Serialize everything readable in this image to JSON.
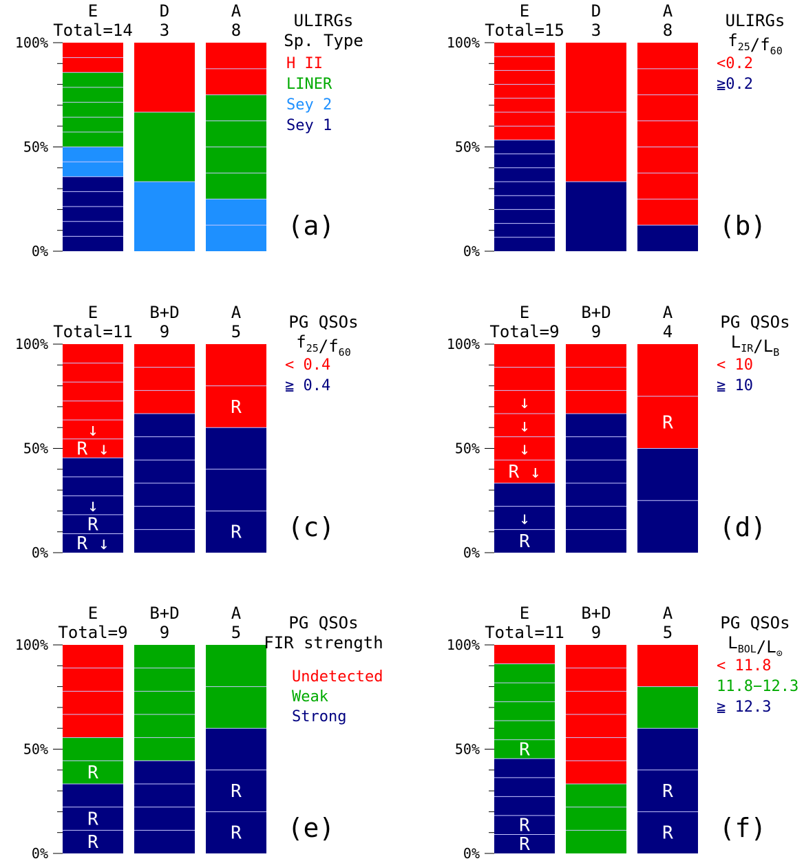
{
  "colors": {
    "red": "#ff0000",
    "green": "#00aa00",
    "lightblue": "#1e90ff",
    "navy": "#000080",
    "divider": "#c8c8ff"
  },
  "chart_data": [
    {
      "type": "bar",
      "stacked": true,
      "panel": "(a)",
      "title_lines": [
        "ULIRGs",
        "Sp. Type"
      ],
      "ylim": [
        0,
        100
      ],
      "yticks": [
        "0%",
        "50%",
        "100%"
      ],
      "categories": [
        "E",
        "D",
        "A"
      ],
      "totals": [
        "Total=14",
        "3",
        "8"
      ],
      "counts": [
        14,
        3,
        8
      ],
      "series": [
        {
          "name": "Sey 1",
          "color": "#000080",
          "values": [
            5,
            0,
            0
          ]
        },
        {
          "name": "Sey 2",
          "color": "#1e90ff",
          "values": [
            2,
            1,
            2
          ]
        },
        {
          "name": "LINER",
          "color": "#00aa00",
          "values": [
            5,
            1,
            4
          ]
        },
        {
          "name": "H II",
          "color": "#ff0000",
          "values": [
            2,
            1,
            2
          ]
        }
      ],
      "legend": [
        {
          "text": "H II",
          "color": "#ff0000"
        },
        {
          "text": "LINER",
          "color": "#00aa00"
        },
        {
          "text": "Sey 2",
          "color": "#1e90ff"
        },
        {
          "text": "Sey 1",
          "color": "#000080"
        }
      ],
      "markers": []
    },
    {
      "type": "bar",
      "stacked": true,
      "panel": "(b)",
      "title_lines": [
        "ULIRGs",
        "f25/f60"
      ],
      "ylim": [
        0,
        100
      ],
      "yticks": [
        "0%",
        "50%",
        "100%"
      ],
      "categories": [
        "E",
        "D",
        "A"
      ],
      "totals": [
        "Total=15",
        "3",
        "8"
      ],
      "counts": [
        15,
        3,
        8
      ],
      "series": [
        {
          "name": "≧0.2",
          "color": "#000080",
          "values": [
            8,
            1,
            1
          ]
        },
        {
          "name": "<0.2",
          "color": "#ff0000",
          "values": [
            7,
            2,
            7
          ]
        }
      ],
      "legend": [
        {
          "text": "<0.2",
          "color": "#ff0000"
        },
        {
          "text": "≧0.2",
          "color": "#000080"
        }
      ],
      "markers": []
    },
    {
      "type": "bar",
      "stacked": true,
      "panel": "(c)",
      "title_lines": [
        "PG QSOs",
        "f25/f60"
      ],
      "ylim": [
        0,
        100
      ],
      "yticks": [
        "0%",
        "50%",
        "100%"
      ],
      "categories": [
        "E",
        "B+D",
        "A"
      ],
      "totals": [
        "Total=11",
        "9",
        "5"
      ],
      "counts": [
        11,
        9,
        5
      ],
      "series": [
        {
          "name": "≧ 0.4",
          "color": "#000080",
          "values": [
            5,
            6,
            3
          ]
        },
        {
          "name": "< 0.4",
          "color": "#ff0000",
          "values": [
            6,
            3,
            2
          ]
        }
      ],
      "legend": [
        {
          "text": "< 0.4",
          "color": "#ff0000"
        },
        {
          "text": "≧ 0.4",
          "color": "#000080"
        }
      ],
      "markers": [
        {
          "bar": 0,
          "seg": 0,
          "text": "R ↓"
        },
        {
          "bar": 0,
          "seg": 1,
          "text": "R"
        },
        {
          "bar": 0,
          "seg": 2,
          "text": "↓"
        },
        {
          "bar": 0,
          "seg": 5,
          "text": "R ↓"
        },
        {
          "bar": 0,
          "seg": 6,
          "text": "↓"
        },
        {
          "bar": 2,
          "seg": 0,
          "text": "R"
        },
        {
          "bar": 2,
          "seg": 3,
          "text": "R"
        }
      ]
    },
    {
      "type": "bar",
      "stacked": true,
      "panel": "(d)",
      "title_lines": [
        "PG QSOs",
        "LIR/LB"
      ],
      "ylim": [
        0,
        100
      ],
      "yticks": [
        "0%",
        "50%",
        "100%"
      ],
      "categories": [
        "E",
        "B+D",
        "A"
      ],
      "totals": [
        "Total=9",
        "9",
        "4"
      ],
      "counts": [
        9,
        9,
        4
      ],
      "series": [
        {
          "name": "≧ 10",
          "color": "#000080",
          "values": [
            3,
            6,
            2
          ]
        },
        {
          "name": "< 10",
          "color": "#ff0000",
          "values": [
            6,
            3,
            2
          ]
        }
      ],
      "legend": [
        {
          "text": "< 10",
          "color": "#ff0000"
        },
        {
          "text": "≧ 10",
          "color": "#000080"
        }
      ],
      "markers": [
        {
          "bar": 0,
          "seg": 0,
          "text": "R"
        },
        {
          "bar": 0,
          "seg": 1,
          "text": "↓"
        },
        {
          "bar": 0,
          "seg": 3,
          "text": "R ↓"
        },
        {
          "bar": 0,
          "seg": 4,
          "text": "↓"
        },
        {
          "bar": 0,
          "seg": 5,
          "text": "↓"
        },
        {
          "bar": 0,
          "seg": 6,
          "text": "↓"
        },
        {
          "bar": 2,
          "seg": 2,
          "text": "R"
        }
      ]
    },
    {
      "type": "bar",
      "stacked": true,
      "panel": "(e)",
      "title_lines": [
        "PG QSOs",
        "FIR strength"
      ],
      "ylim": [
        0,
        100
      ],
      "yticks": [
        "0%",
        "50%",
        "100%"
      ],
      "categories": [
        "E",
        "B+D",
        "A"
      ],
      "totals": [
        "Total=9",
        "9",
        "5"
      ],
      "counts": [
        9,
        9,
        5
      ],
      "series": [
        {
          "name": "Strong",
          "color": "#000080",
          "values": [
            3,
            4,
            3
          ]
        },
        {
          "name": "Weak",
          "color": "#00aa00",
          "values": [
            2,
            5,
            2
          ]
        },
        {
          "name": "Undetected",
          "color": "#ff0000",
          "values": [
            4,
            0,
            0
          ]
        }
      ],
      "legend": [
        {
          "text": "Undetected",
          "color": "#ff0000"
        },
        {
          "text": "Weak",
          "color": "#00aa00"
        },
        {
          "text": "Strong",
          "color": "#000080"
        }
      ],
      "markers": [
        {
          "bar": 0,
          "seg": 0,
          "text": "R"
        },
        {
          "bar": 0,
          "seg": 1,
          "text": "R"
        },
        {
          "bar": 0,
          "seg": 3,
          "text": "R"
        },
        {
          "bar": 2,
          "seg": 0,
          "text": "R"
        },
        {
          "bar": 2,
          "seg": 1,
          "text": "R"
        }
      ]
    },
    {
      "type": "bar",
      "stacked": true,
      "panel": "(f)",
      "title_lines": [
        "PG QSOs",
        "LBOL/L☉"
      ],
      "ylim": [
        0,
        100
      ],
      "yticks": [
        "0%",
        "50%",
        "100%"
      ],
      "categories": [
        "E",
        "B+D",
        "A"
      ],
      "totals": [
        "Total=11",
        "9",
        "5"
      ],
      "counts": [
        11,
        9,
        5
      ],
      "series": [
        {
          "name": "≧ 12.3",
          "color": "#000080",
          "values": [
            5,
            0,
            3
          ]
        },
        {
          "name": "11.8−12.3",
          "color": "#00aa00",
          "values": [
            5,
            3,
            1
          ]
        },
        {
          "name": "< 11.8",
          "color": "#ff0000",
          "values": [
            1,
            6,
            1
          ]
        }
      ],
      "legend": [
        {
          "text": "< 11.8",
          "color": "#ff0000"
        },
        {
          "text": "11.8−12.3",
          "color": "#00aa00"
        },
        {
          "text": "≧ 12.3",
          "color": "#000080"
        }
      ],
      "markers": [
        {
          "bar": 0,
          "seg": 0,
          "text": "R"
        },
        {
          "bar": 0,
          "seg": 1,
          "text": "R"
        },
        {
          "bar": 0,
          "seg": 5,
          "text": "R"
        },
        {
          "bar": 2,
          "seg": 0,
          "text": "R"
        },
        {
          "bar": 2,
          "seg": 1,
          "text": "R"
        }
      ]
    }
  ]
}
